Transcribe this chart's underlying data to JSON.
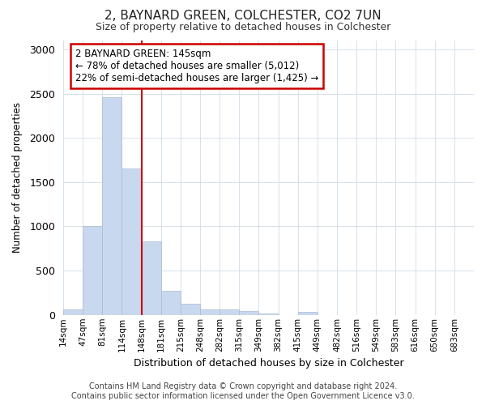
{
  "title": "2, BAYNARD GREEN, COLCHESTER, CO2 7UN",
  "subtitle": "Size of property relative to detached houses in Colchester",
  "xlabel": "Distribution of detached houses by size in Colchester",
  "ylabel": "Number of detached properties",
  "bin_labels": [
    "14sqm",
    "47sqm",
    "81sqm",
    "114sqm",
    "148sqm",
    "181sqm",
    "215sqm",
    "248sqm",
    "282sqm",
    "315sqm",
    "349sqm",
    "382sqm",
    "415sqm",
    "449sqm",
    "482sqm",
    "516sqm",
    "549sqm",
    "583sqm",
    "616sqm",
    "650sqm",
    "683sqm"
  ],
  "bar_heights": [
    60,
    1000,
    2460,
    1650,
    830,
    275,
    130,
    60,
    60,
    45,
    20,
    0,
    30,
    0,
    0,
    0,
    0,
    0,
    0,
    0,
    0
  ],
  "bar_color": "#c8d8ee",
  "bar_edgecolor": "#aabbd0",
  "vline_x_index": 4,
  "vline_color": "#cc0000",
  "annotation_text": "2 BAYNARD GREEN: 145sqm\n← 78% of detached houses are smaller (5,012)\n22% of semi-detached houses are larger (1,425) →",
  "annotation_box_color": "#cc0000",
  "ylim": [
    0,
    3100
  ],
  "yticks": [
    0,
    500,
    1000,
    1500,
    2000,
    2500,
    3000
  ],
  "footer": "Contains HM Land Registry data © Crown copyright and database right 2024.\nContains public sector information licensed under the Open Government Licence v3.0.",
  "bg_color": "#ffffff",
  "plot_bg_color": "#ffffff",
  "grid_color": "#d0dce8"
}
